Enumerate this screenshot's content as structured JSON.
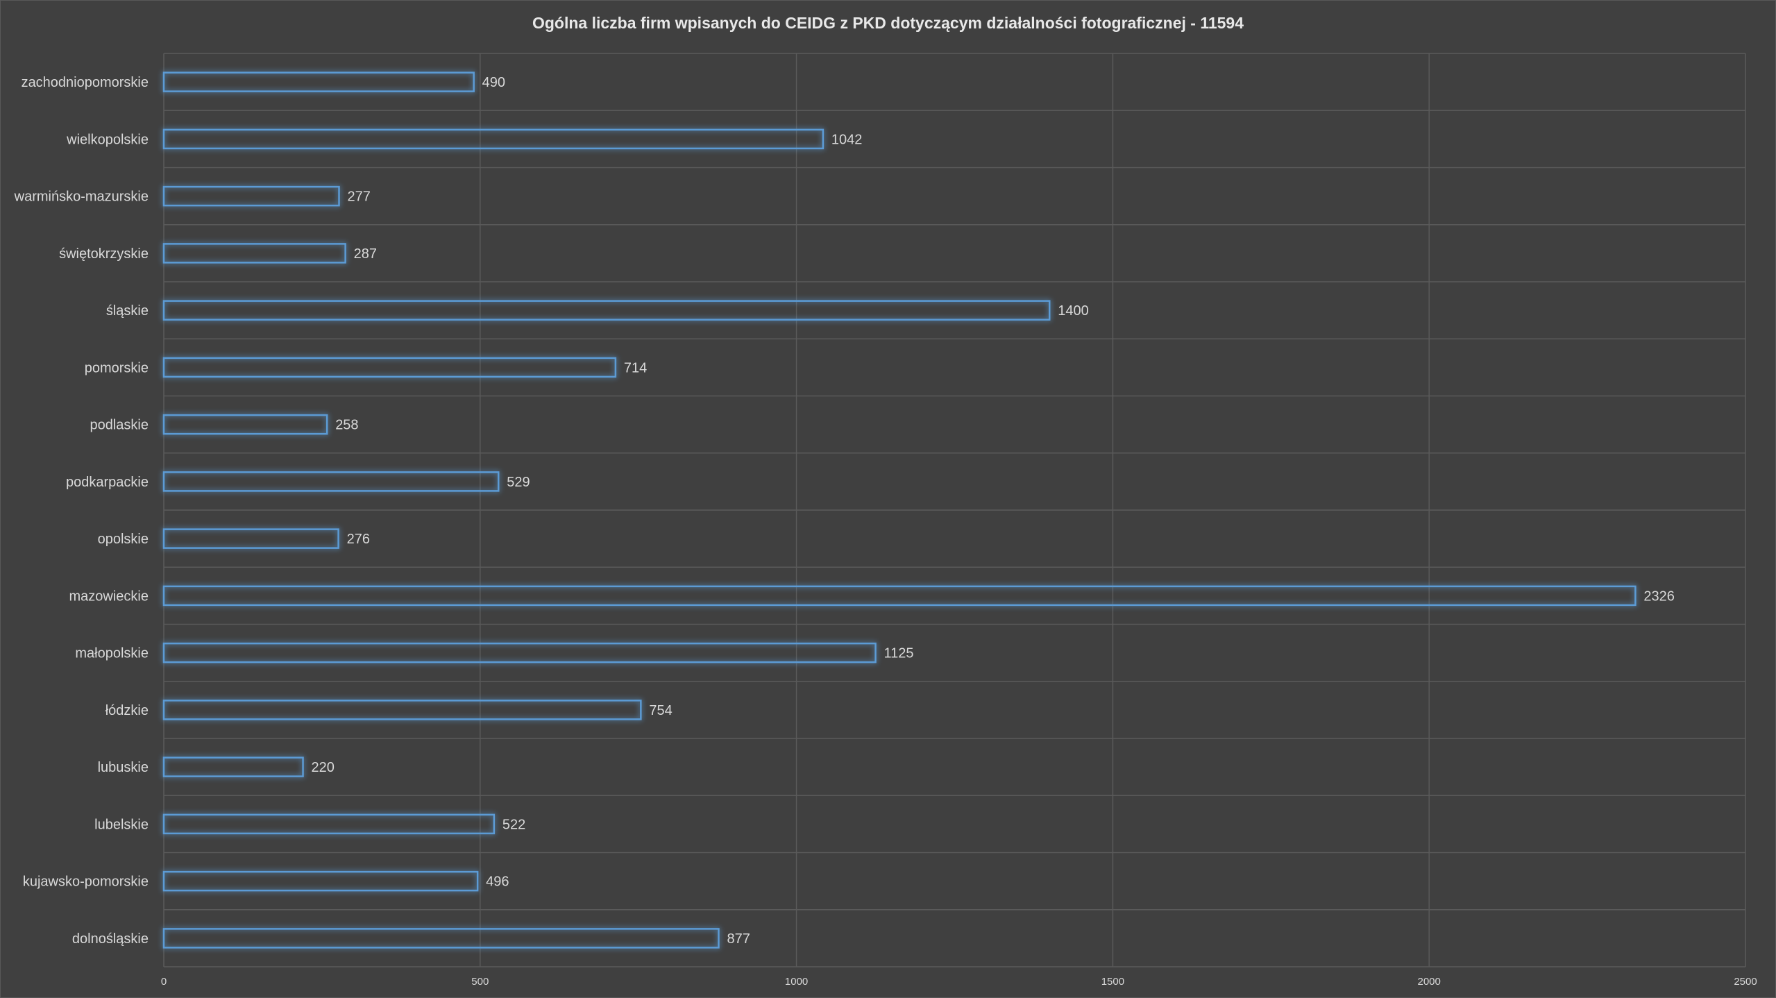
{
  "chart_data": {
    "type": "bar",
    "orientation": "horizontal",
    "title": "Ogólna liczba firm wpisanych do CEIDG z PKD dotyczącym działalności fotograficznej - 11594",
    "xlabel": "",
    "ylabel": "",
    "xlim": [
      0,
      2500
    ],
    "x_ticks": [
      "0",
      "500",
      "1000",
      "1500",
      "2000",
      "2500"
    ],
    "grid": true,
    "legend": "none",
    "categories": [
      "zachodniopomorskie",
      "wielkopolskie",
      "warmińsko-mazurskie",
      "świętokrzyskie",
      "śląskie",
      "pomorskie",
      "podlaskie",
      "podkarpackie",
      "opolskie",
      "mazowieckie",
      "małopolskie",
      "łódzkie",
      "lubuskie",
      "lubelskie",
      "kujawsko-pomorskie",
      "dolnośląskie"
    ],
    "values": [
      490,
      1042,
      277,
      287,
      1400,
      714,
      258,
      529,
      276,
      2326,
      1125,
      754,
      220,
      522,
      496,
      877
    ],
    "colors": {
      "background": "#404040",
      "bar_outline": "#5b9bd5",
      "bar_glow": "#2e6fb5",
      "gridline": "#5a5a5a",
      "text": "#d9d9d9",
      "title": "#e8e8e8"
    }
  }
}
